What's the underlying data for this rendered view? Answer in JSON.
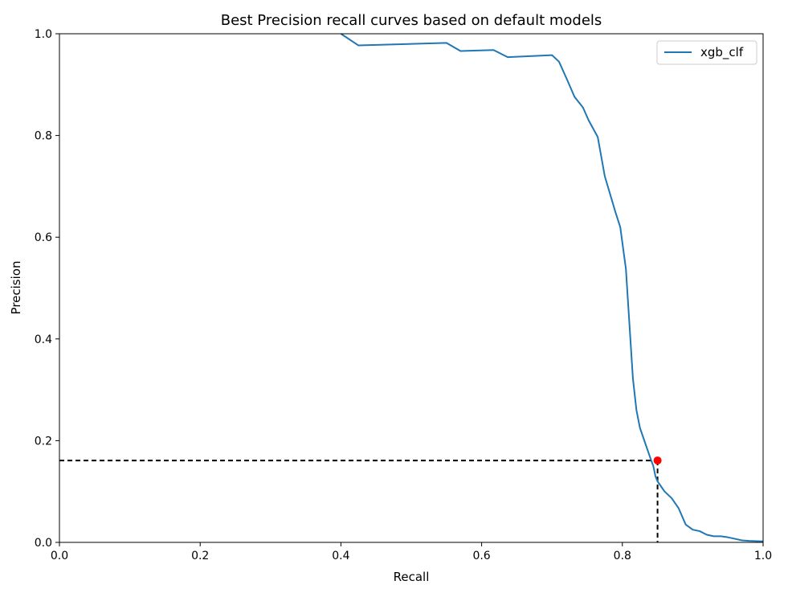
{
  "chart_data": {
    "type": "line",
    "title": "Best Precision recall curves based on default models",
    "xlabel": "Recall",
    "ylabel": "Precision",
    "xlim": [
      0.0,
      1.0
    ],
    "ylim": [
      0.0,
      1.0
    ],
    "x_ticks": [
      "0.0",
      "0.2",
      "0.4",
      "0.6",
      "0.8",
      "1.0"
    ],
    "y_ticks": [
      "0.0",
      "0.2",
      "0.4",
      "0.6",
      "0.8",
      "1.0"
    ],
    "grid": false,
    "legend_position": "top-right",
    "series": [
      {
        "name": "xgb_clf",
        "color": "#1f77b4",
        "x": [
          0.4,
          0.425,
          0.55,
          0.57,
          0.617,
          0.637,
          0.7,
          0.71,
          0.722,
          0.732,
          0.744,
          0.752,
          0.765,
          0.775,
          0.79,
          0.797,
          0.805,
          0.81,
          0.815,
          0.82,
          0.825,
          0.83,
          0.835,
          0.84,
          0.844,
          0.847,
          0.85,
          0.855,
          0.86,
          0.87,
          0.88,
          0.89,
          0.9,
          0.91,
          0.92,
          0.93,
          0.94,
          0.95,
          0.96,
          0.97,
          0.98,
          1.0
        ],
        "y": [
          1.0,
          0.977,
          0.982,
          0.966,
          0.968,
          0.954,
          0.958,
          0.945,
          0.908,
          0.876,
          0.855,
          0.83,
          0.797,
          0.72,
          0.65,
          0.62,
          0.538,
          0.43,
          0.322,
          0.26,
          0.225,
          0.205,
          0.185,
          0.165,
          0.15,
          0.13,
          0.12,
          0.11,
          0.1,
          0.087,
          0.067,
          0.035,
          0.025,
          0.022,
          0.015,
          0.012,
          0.012,
          0.01,
          0.007,
          0.004,
          0.003,
          0.002
        ]
      }
    ],
    "marker": {
      "x": 0.85,
      "y": 0.161,
      "color": "#ff0000"
    },
    "reference_lines": {
      "x": 0.85,
      "y": 0.161,
      "color": "#000000",
      "style": "dashed"
    }
  }
}
